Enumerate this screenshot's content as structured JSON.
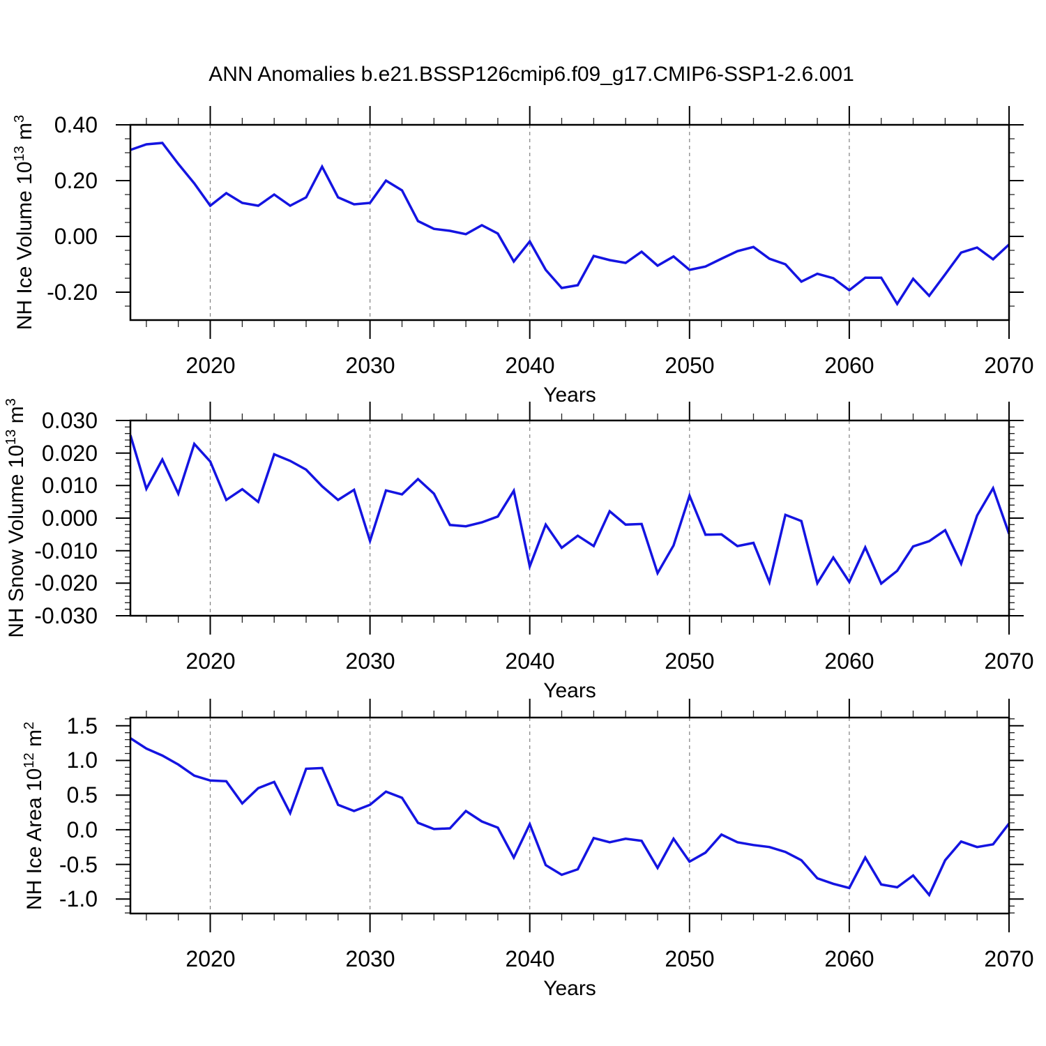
{
  "title": "ANN Anomalies b.e21.BSSP126cmip6.f09_g17.CMIP6-SSP1-2.6.001",
  "colors": {
    "line": "#1414e1",
    "grid": "#808080",
    "axis": "#000000",
    "minor_tick": "#222222",
    "text": "#000000",
    "background": "#ffffff"
  },
  "years": [
    2015,
    2016,
    2017,
    2018,
    2019,
    2020,
    2021,
    2022,
    2023,
    2024,
    2025,
    2026,
    2027,
    2028,
    2029,
    2030,
    2031,
    2032,
    2033,
    2034,
    2035,
    2036,
    2037,
    2038,
    2039,
    2040,
    2041,
    2042,
    2043,
    2044,
    2045,
    2046,
    2047,
    2048,
    2049,
    2050,
    2051,
    2052,
    2053,
    2054,
    2055,
    2056,
    2057,
    2058,
    2059,
    2060,
    2061,
    2062,
    2063,
    2064,
    2065,
    2066,
    2067,
    2068,
    2069,
    2070
  ],
  "x_axis": {
    "title": "Years",
    "range": [
      2015,
      2070
    ],
    "major_ticks": [
      2020,
      2030,
      2040,
      2050,
      2060,
      2070
    ],
    "tick_labels": [
      "2020",
      "2030",
      "2040",
      "2050",
      "2060",
      "2070"
    ],
    "minor_step_years": 2,
    "grid_years": [
      2020,
      2030,
      2040,
      2050,
      2060
    ]
  },
  "chart_data": [
    {
      "type": "line",
      "series_name": "NH Ice Volume anomaly",
      "ylabel_parts": [
        {
          "t": "NH Ice Volume 10"
        },
        {
          "t": "13",
          "sup": true
        },
        {
          "t": " m"
        },
        {
          "t": "3",
          "sup": true
        }
      ],
      "ylim": [
        -0.3,
        0.4
      ],
      "y_major_ticks": [
        0.4,
        0.2,
        0.0,
        -0.2
      ],
      "y_tick_labels": [
        "0.40",
        "0.20",
        "0.00",
        "-0.20"
      ],
      "y_minor_step": 0.05,
      "values": [
        0.31,
        0.33,
        0.335,
        0.26,
        0.19,
        0.11,
        0.155,
        0.12,
        0.11,
        0.15,
        0.11,
        0.14,
        0.25,
        0.14,
        0.115,
        0.12,
        0.2,
        0.165,
        0.055,
        0.027,
        0.02,
        0.008,
        0.04,
        0.01,
        -0.09,
        -0.018,
        -0.12,
        -0.185,
        -0.175,
        -0.07,
        -0.085,
        -0.095,
        -0.055,
        -0.105,
        -0.072,
        -0.12,
        -0.108,
        -0.08,
        -0.053,
        -0.038,
        -0.08,
        -0.1,
        -0.162,
        -0.134,
        -0.15,
        -0.193,
        -0.148,
        -0.148,
        -0.242,
        -0.152,
        -0.213,
        -0.136,
        -0.058,
        -0.04,
        -0.082,
        -0.029
      ]
    },
    {
      "type": "line",
      "series_name": "NH Snow Volume anomaly",
      "ylabel_parts": [
        {
          "t": "NH Snow Volume 10"
        },
        {
          "t": "13",
          "sup": true
        },
        {
          "t": " m"
        },
        {
          "t": "3",
          "sup": true
        }
      ],
      "ylim": [
        -0.03,
        0.03
      ],
      "y_major_ticks": [
        0.03,
        0.02,
        0.01,
        0.0,
        -0.01,
        -0.02,
        -0.03
      ],
      "y_tick_labels": [
        "0.030",
        "0.020",
        "0.010",
        "0.000",
        "-0.010",
        "-0.020",
        "-0.030"
      ],
      "y_minor_step": 0.002,
      "values": [
        0.0255,
        0.009,
        0.018,
        0.0075,
        0.0228,
        0.0174,
        0.0056,
        0.0089,
        0.005,
        0.0196,
        0.0176,
        0.0149,
        0.0098,
        0.0056,
        0.0087,
        -0.007,
        0.0085,
        0.0073,
        0.012,
        0.0075,
        -0.0021,
        -0.0025,
        -0.0013,
        0.0005,
        0.0084,
        -0.0148,
        -0.002,
        -0.0091,
        -0.0054,
        -0.0086,
        0.0021,
        -0.002,
        -0.0018,
        -0.0169,
        -0.0084,
        0.0069,
        -0.0051,
        -0.005,
        -0.0086,
        -0.0076,
        -0.0197,
        0.001,
        -0.0009,
        -0.02,
        -0.0121,
        -0.0196,
        -0.009,
        -0.0201,
        -0.0162,
        -0.0087,
        -0.0071,
        -0.0037,
        -0.014,
        0.0008,
        0.0092,
        -0.0048
      ]
    },
    {
      "type": "line",
      "series_name": "NH Ice Area anomaly",
      "ylabel_parts": [
        {
          "t": "NH Ice Area 10"
        },
        {
          "t": "12",
          "sup": true
        },
        {
          "t": " m"
        },
        {
          "t": "2",
          "sup": true
        }
      ],
      "ylim": [
        -1.208,
        1.618
      ],
      "y_major_ticks": [
        1.5,
        1.0,
        0.5,
        0.0,
        -0.5,
        -1.0
      ],
      "y_tick_labels": [
        "1.5",
        "1.0",
        "0.5",
        "0.0",
        "-0.5",
        "-1.0"
      ],
      "y_minor_step": 0.1,
      "values": [
        1.32,
        1.17,
        1.07,
        0.94,
        0.78,
        0.71,
        0.7,
        0.38,
        0.6,
        0.69,
        0.24,
        0.88,
        0.89,
        0.36,
        0.27,
        0.36,
        0.55,
        0.46,
        0.1,
        0.01,
        0.02,
        0.27,
        0.12,
        0.03,
        -0.4,
        0.08,
        -0.51,
        -0.65,
        -0.57,
        -0.12,
        -0.18,
        -0.13,
        -0.16,
        -0.55,
        -0.13,
        -0.46,
        -0.33,
        -0.07,
        -0.18,
        -0.22,
        -0.25,
        -0.32,
        -0.44,
        -0.7,
        -0.78,
        -0.84,
        -0.4,
        -0.79,
        -0.83,
        -0.66,
        -0.94,
        -0.44,
        -0.17,
        -0.25,
        -0.21,
        0.09
      ]
    }
  ]
}
